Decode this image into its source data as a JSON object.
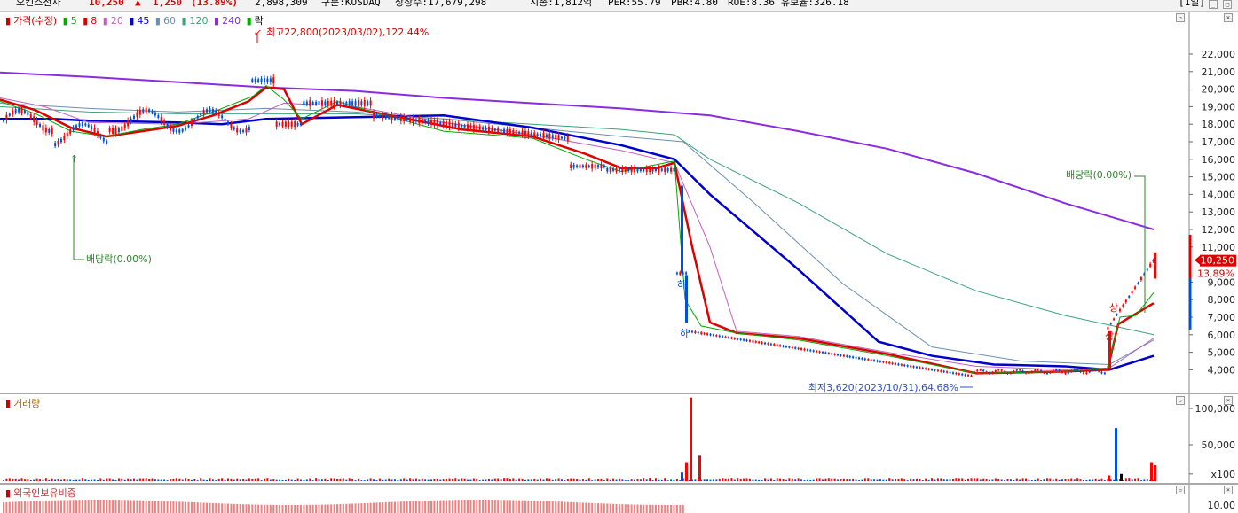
{
  "summary": {
    "name": "오킨스전자",
    "price": "10,250",
    "arrow": "▲",
    "change": "1,250",
    "change_pct": "(13.89%)",
    "volume": "2,898,309",
    "market": "구분:KOSDAQ",
    "shares": "상장수:17,679,298",
    "mktcap": "시총:1,812억",
    "per": "PER:55.79",
    "pbr": "PBR:4.80",
    "roe": "ROE:8.36",
    "float": "유보율:326.18",
    "period": "[1일]"
  },
  "legend": {
    "price": "가격(수정)",
    "ma5": "5",
    "ma8": "8",
    "ma20": "20",
    "ma45": "45",
    "ma60": "60",
    "ma120": "120",
    "ma240": "240",
    "ex": "락"
  },
  "annotations": {
    "high": "최고22,800(2023/03/02),122.44%",
    "low": "최저3,620(2023/10/31),64.68%",
    "div1": "배당락(0.00%)",
    "div2": "배당락(0.00%)",
    "ha1": "하",
    "ha2": "하",
    "sang1": "상",
    "sang2": "상"
  },
  "price_axis": {
    "ticks": [
      "22,000",
      "21,000",
      "20,000",
      "19,000",
      "18,000",
      "17,000",
      "16,000",
      "15,000",
      "14,000",
      "13,000",
      "12,000",
      "11,000",
      "9,000",
      "8,000",
      "7,000",
      "6,000",
      "5,000",
      "4,000"
    ],
    "current": "10,250",
    "current_pct": "13.89%"
  },
  "volume_pane": {
    "title": "거래량",
    "ticks": [
      "100,000",
      "50,000",
      "x100"
    ]
  },
  "foreign_pane": {
    "title": "외국인보유비중",
    "ticks": [
      "10.00"
    ]
  },
  "colors": {
    "up": "#ff0000",
    "down": "#0050dc",
    "ma5": "#00aa00",
    "ma8": "#dd0000",
    "ma20": "#c060c0",
    "ma45": "#0000cc",
    "ma60": "#6a8fb0",
    "ma120": "#3aa37a",
    "ma240": "#8a2be2"
  }
}
